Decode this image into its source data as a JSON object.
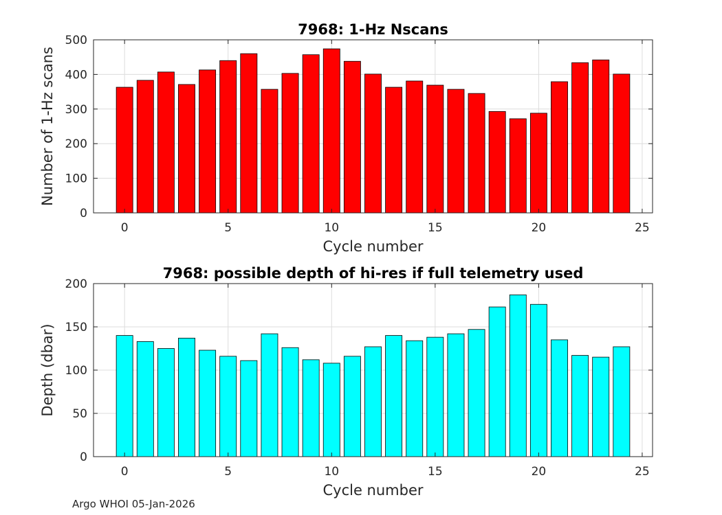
{
  "footer": "Argo WHOI 05-Jan-2026",
  "chart_data": [
    {
      "type": "bar",
      "title": "7968: 1-Hz Nscans",
      "xlabel": "Cycle number",
      "ylabel": "Number of 1-Hz scans",
      "x": [
        0,
        1,
        2,
        3,
        4,
        5,
        6,
        7,
        8,
        9,
        10,
        11,
        12,
        13,
        14,
        15,
        16,
        17,
        18,
        19,
        20,
        21,
        22,
        23,
        24
      ],
      "values": [
        363,
        383,
        407,
        371,
        413,
        440,
        460,
        357,
        403,
        457,
        474,
        438,
        401,
        363,
        381,
        369,
        357,
        345,
        293,
        272,
        288,
        379,
        434,
        442,
        401
      ],
      "xlim": [
        -1.5,
        25.5
      ],
      "ylim": [
        0,
        500
      ],
      "xticks": [
        "0",
        "5",
        "10",
        "15",
        "20",
        "25"
      ],
      "yticks": [
        "0",
        "100",
        "200",
        "300",
        "400",
        "500"
      ],
      "color": "#ff0000",
      "grid": true
    },
    {
      "type": "bar",
      "title": "7968: possible depth of hi-res if full telemetry used",
      "xlabel": "Cycle number",
      "ylabel": "Depth (dbar)",
      "x": [
        0,
        1,
        2,
        3,
        4,
        5,
        6,
        7,
        8,
        9,
        10,
        11,
        12,
        13,
        14,
        15,
        16,
        17,
        18,
        19,
        20,
        21,
        22,
        23,
        24
      ],
      "values": [
        140,
        133,
        125,
        137,
        123,
        116,
        111,
        142,
        126,
        112,
        108,
        116,
        127,
        140,
        134,
        138,
        142,
        147,
        173,
        187,
        176,
        135,
        117,
        115,
        127
      ],
      "xlim": [
        -1.5,
        25.5
      ],
      "ylim": [
        0,
        200
      ],
      "xticks": [
        "0",
        "5",
        "10",
        "15",
        "20",
        "25"
      ],
      "yticks": [
        "0",
        "50",
        "100",
        "150",
        "200"
      ],
      "color": "#00ffff",
      "grid": true
    }
  ]
}
